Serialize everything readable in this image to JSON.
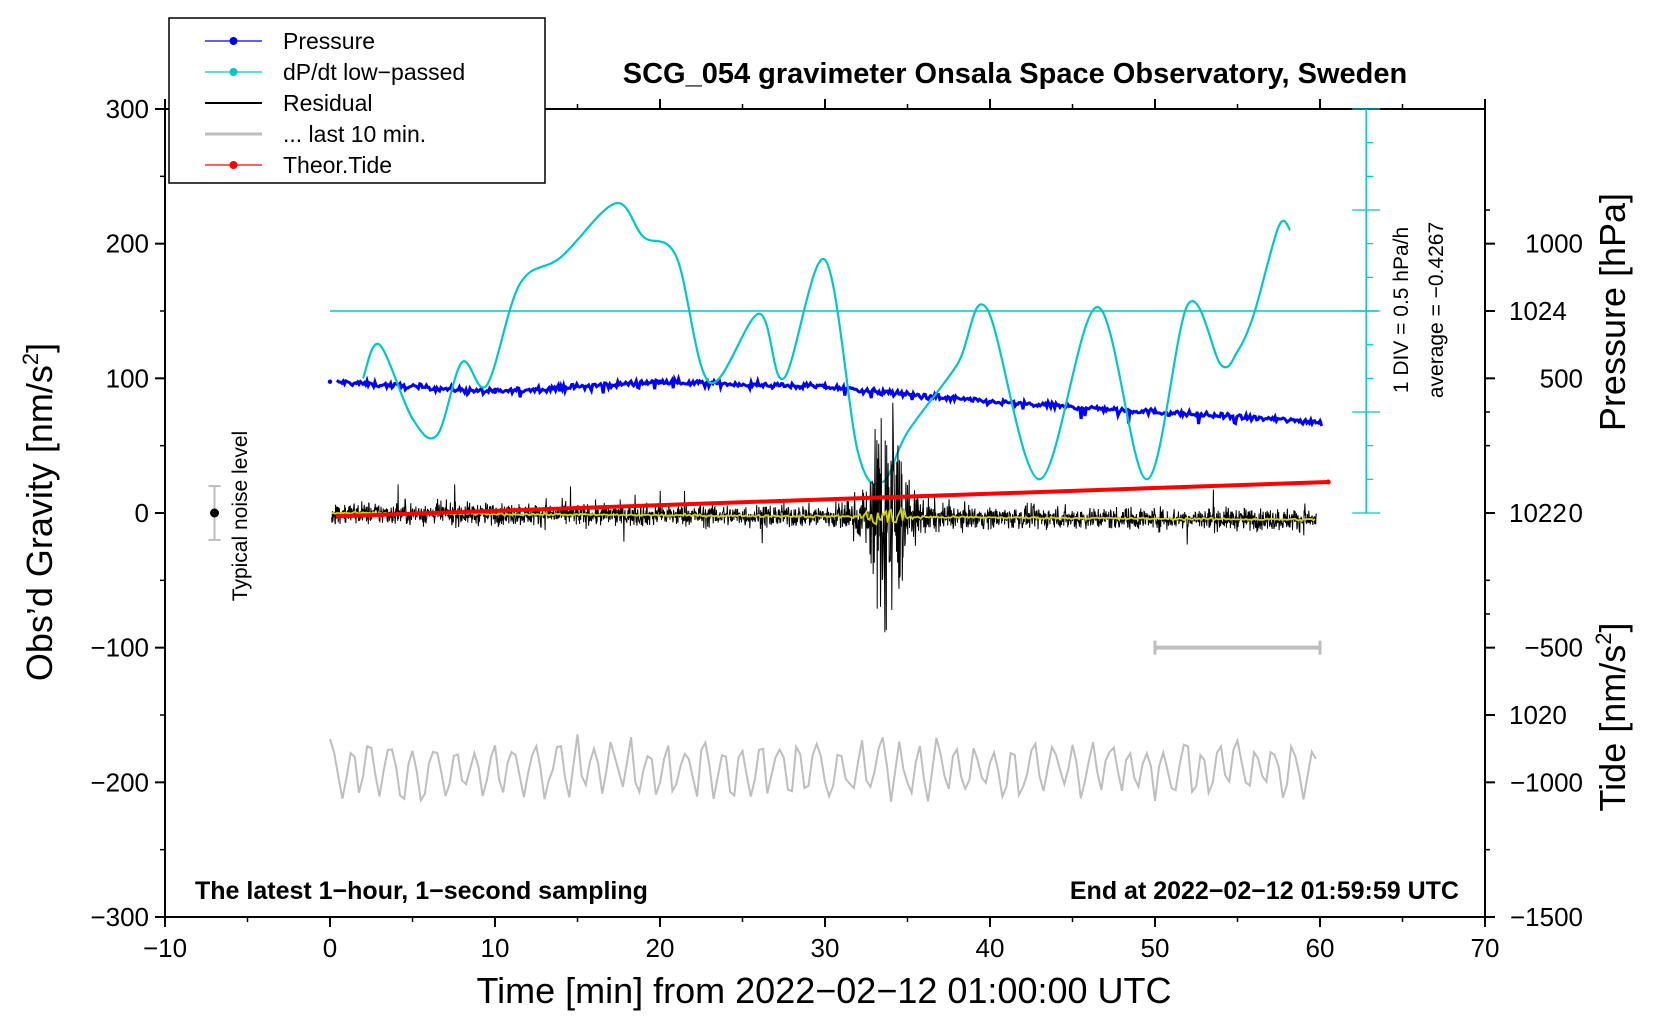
{
  "chart_data": {
    "type": "line",
    "title": "SCG_054 gravimeter Onsala Space Observatory, Sweden",
    "xlabel": "Time [min] from 2022−02−12 01:00:00 UTC",
    "ylabel_left": "Obs’d Gravity [nm/s",
    "ylabel_left_sup": "2",
    "ylabel_left_end": "]",
    "ylabel_right_top": "Pressure [hPa]",
    "ylabel_right_bottom": "Tide [nm/s",
    "ylabel_right_bottom_sup": "2",
    "ylabel_right_bottom_end": "]",
    "xlim": [
      -10,
      70
    ],
    "ylim": [
      -300,
      300
    ],
    "pressure_ylim": [
      1018,
      1026
    ],
    "tide_ylim": [
      -1500,
      1500
    ],
    "x_ticks": [
      "−10",
      "0",
      "10",
      "20",
      "30",
      "40",
      "50",
      "60",
      "70"
    ],
    "y_ticks": [
      "300",
      "200",
      "100",
      "0",
      "−100",
      "−200",
      "−300"
    ],
    "pressure_ticks": [
      "1024",
      "1022",
      "1020"
    ],
    "tide_ticks": [
      "1000",
      "500",
      "0",
      "−500",
      "−1000",
      "−1500"
    ],
    "legend": [
      {
        "label": "Pressure",
        "color": "#0000ff",
        "marker": true
      },
      {
        "label": "dP/dt low−passed",
        "color": "#00c8c8",
        "marker": true
      },
      {
        "label": "Residual",
        "color": "#000000",
        "marker": false
      },
      {
        "label": "... last 10 min.",
        "color": "#bebebe",
        "marker": false
      },
      {
        "label": "Theor.Tide",
        "color": "#ff0000",
        "marker": true
      }
    ],
    "annotations": {
      "bottom_left": "The latest 1−hour, 1−second sampling",
      "bottom_right": "End at 2022−02−12 01:59:59 UTC",
      "noise": "Typical noise level",
      "dpdt_div": "1 DIV = 0.5 hPa/h",
      "dpdt_avg": "average = −0.4267"
    },
    "series": [
      {
        "name": "Pressure",
        "unit": "hPa",
        "x": [
          0,
          10,
          20,
          30,
          40,
          50,
          60
        ],
        "values": [
          1023.3,
          1023.2,
          1023.3,
          1023.25,
          1023.1,
          1023.0,
          1022.9
        ]
      },
      {
        "name": "dP/dt low−passed",
        "unit": "gravity-axis",
        "x": [
          2,
          3,
          5,
          6.5,
          8,
          9.5,
          11.5,
          14,
          17.3,
          19,
          21,
          23,
          26,
          27.5,
          30,
          32,
          33.5,
          35,
          38,
          39.8,
          43,
          46.5,
          49.5,
          52,
          54,
          55,
          56,
          57.5,
          58.2
        ],
        "values": [
          100,
          125,
          70,
          58,
          112,
          95,
          170,
          190,
          230,
          205,
          190,
          97,
          148,
          100,
          188,
          45,
          23,
          60,
          110,
          152,
          25,
          153,
          25,
          155,
          110,
          120,
          148,
          213,
          210
        ]
      },
      {
        "name": "Residual",
        "unit": "nm/s2",
        "x": [
          0,
          60
        ],
        "values": [
          0,
          -5
        ]
      },
      {
        "name": "... last 10 min.",
        "unit": "gravity-axis",
        "x": [
          0,
          60
        ],
        "values": [
          -190,
          -190
        ]
      },
      {
        "name": "Theor.Tide",
        "unit": "nm/s2",
        "x": [
          0.5,
          60.5
        ],
        "values": [
          -12,
          115
        ]
      }
    ],
    "noise_bar": {
      "x": -7,
      "center": 0,
      "half_range": 20
    },
    "scale_bar": {
      "x": [
        50,
        60
      ],
      "y": -100
    },
    "dpdt_baseline": 150
  }
}
